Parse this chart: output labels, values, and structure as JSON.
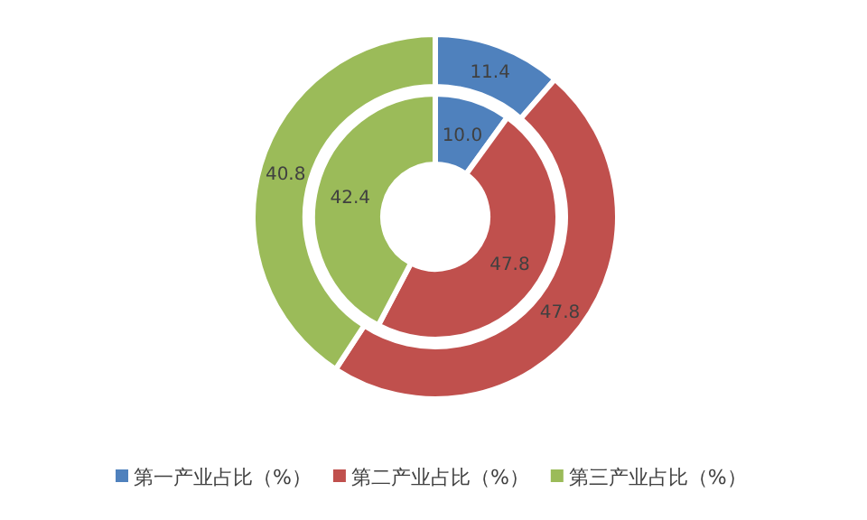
{
  "chart_data": {
    "type": "donut",
    "categories": [
      "第一产业占比（%）",
      "第二产业占比（%）",
      "第三产业占比（%）"
    ],
    "colors": [
      "#4f81bd",
      "#c0504d",
      "#9bbb59"
    ],
    "series": [
      {
        "values": [
          11.4,
          47.8,
          40.8
        ],
        "value_labels": [
          "11.4",
          "47.8",
          "40.8"
        ]
      },
      {
        "values": [
          10.0,
          47.8,
          42.4
        ],
        "value_labels": [
          "10.0",
          "47.8",
          "42.4"
        ]
      }
    ],
    "legend": "bottom"
  }
}
